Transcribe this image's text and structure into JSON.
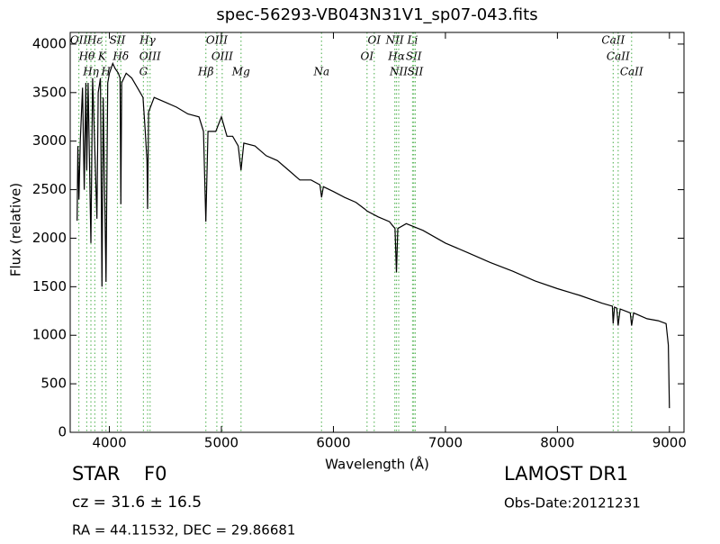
{
  "chart_data": {
    "type": "line",
    "title": "spec-56293-VB043N31V1_sp07-043.fits",
    "x_label": "Wavelength (Å)",
    "y_label": "Flux (relative)",
    "xlim": [
      3650,
      9130
    ],
    "ylim": [
      0,
      4120
    ],
    "xticks": [
      4000,
      5000,
      6000,
      7000,
      8000,
      9000
    ],
    "yticks": [
      0,
      500,
      1000,
      1500,
      2000,
      2500,
      3000,
      3500,
      4000
    ],
    "color": "#000000",
    "line_color": "#66bb66",
    "x": [
      3712,
      3718,
      3728,
      3740,
      3760,
      3775,
      3790,
      3798,
      3810,
      3835,
      3850,
      3870,
      3889,
      3900,
      3920,
      3934,
      3945,
      3970,
      3985,
      4000,
      4030,
      4050,
      4080,
      4095,
      4102,
      4110,
      4150,
      4200,
      4250,
      4300,
      4320,
      4335,
      4341,
      4350,
      4400,
      4500,
      4600,
      4700,
      4800,
      4840,
      4861,
      4880,
      4950,
      5000,
      5050,
      5100,
      5150,
      5175,
      5200,
      5300,
      5400,
      5500,
      5600,
      5700,
      5800,
      5880,
      5894,
      5910,
      6000,
      6100,
      6200,
      6280,
      6300,
      6400,
      6500,
      6550,
      6563,
      6575,
      6650,
      6800,
      7000,
      7200,
      7400,
      7600,
      7800,
      8000,
      8200,
      8400,
      8490,
      8498,
      8510,
      8530,
      8542,
      8560,
      8650,
      8662,
      8680,
      8800,
      8900,
      8970,
      8990,
      9000
    ],
    "values": [
      2180,
      2950,
      2400,
      3000,
      3550,
      2500,
      3600,
      2700,
      3600,
      1950,
      3650,
      2900,
      2200,
      3500,
      3650,
      1500,
      3450,
      1550,
      3600,
      3700,
      3800,
      3750,
      3700,
      3650,
      2350,
      3600,
      3700,
      3650,
      3550,
      3450,
      3100,
      2800,
      2300,
      3300,
      3450,
      3400,
      3350,
      3280,
      3250,
      3100,
      2170,
      3100,
      3100,
      3250,
      3050,
      3050,
      2950,
      2700,
      2980,
      2950,
      2850,
      2800,
      2700,
      2600,
      2600,
      2550,
      2420,
      2530,
      2480,
      2420,
      2370,
      2300,
      2280,
      2220,
      2170,
      2100,
      1650,
      2100,
      2150,
      2080,
      1950,
      1850,
      1750,
      1660,
      1560,
      1480,
      1410,
      1330,
      1300,
      1120,
      1290,
      1280,
      1100,
      1270,
      1230,
      1100,
      1230,
      1170,
      1150,
      1120,
      900,
      250
    ],
    "lines": [
      {
        "x": 3727,
        "label": "OII"
      },
      {
        "x": 3798,
        "label": "Hθ"
      },
      {
        "x": 3835,
        "label": "Hη"
      },
      {
        "x": 3870,
        "label": "Hε"
      },
      {
        "x": 3934,
        "label": "K"
      },
      {
        "x": 3969,
        "label": "H"
      },
      {
        "x": 4072,
        "label": "SII"
      },
      {
        "x": 4102,
        "label": "Hδ"
      },
      {
        "x": 4304,
        "label": "G"
      },
      {
        "x": 4341,
        "label": "Hγ"
      },
      {
        "x": 4363,
        "label": "OIII"
      },
      {
        "x": 4861,
        "label": "Hβ"
      },
      {
        "x": 4959,
        "label": "OIII"
      },
      {
        "x": 5007,
        "label": "OIII"
      },
      {
        "x": 5175,
        "label": "Mg"
      },
      {
        "x": 6364,
        "label": "OI"
      },
      {
        "x": 6300,
        "label": "OI"
      },
      {
        "x": 5894,
        "label": "Na"
      },
      {
        "x": 6548,
        "label": "NII"
      },
      {
        "x": 6563,
        "label": "Hα"
      },
      {
        "x": 6583,
        "label": "NII"
      },
      {
        "x": 6707,
        "label": "Li"
      },
      {
        "x": 6717,
        "label": "SII"
      },
      {
        "x": 6731,
        "label": "SII"
      },
      {
        "x": 8498,
        "label": "CaII"
      },
      {
        "x": 8542,
        "label": "CaII"
      },
      {
        "x": 8662,
        "label": "CaII"
      }
    ],
    "object_class": "STAR",
    "subclass": "F0",
    "redshift": "cz = 31.6 ± 16.5",
    "coordinates": "RA = 44.11532, DEC = 29.86681",
    "survey": "LAMOST DR1",
    "obs_date": "Obs-Date:20121231"
  }
}
